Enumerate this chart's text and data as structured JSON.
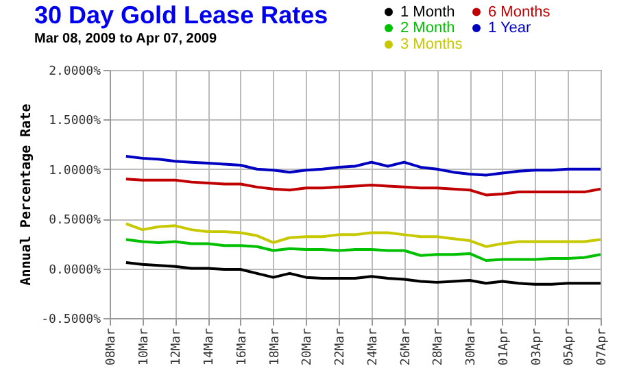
{
  "chart_data": {
    "type": "line",
    "title": "30 Day Gold Lease Rates",
    "subtitle": "Mar 08, 2009 to Apr 07, 2009",
    "ylabel": "Annual Percentage Rate",
    "x": [
      "2009-03-09",
      "2009-03-10",
      "2009-03-11",
      "2009-03-12",
      "2009-03-13",
      "2009-03-14",
      "2009-03-15",
      "2009-03-16",
      "2009-03-17",
      "2009-03-18",
      "2009-03-19",
      "2009-03-20",
      "2009-03-21",
      "2009-03-22",
      "2009-03-23",
      "2009-03-24",
      "2009-03-25",
      "2009-03-26",
      "2009-03-27",
      "2009-03-28",
      "2009-03-29",
      "2009-03-30",
      "2009-03-31",
      "2009-04-01",
      "2009-04-02",
      "2009-04-03",
      "2009-04-04",
      "2009-04-05",
      "2009-04-06",
      "2009-04-07"
    ],
    "series": [
      {
        "name": "1 Month",
        "color": "#000000",
        "values": [
          0.06,
          0.04,
          0.03,
          0.02,
          0.0,
          0.0,
          -0.01,
          -0.01,
          -0.05,
          -0.09,
          -0.05,
          -0.09,
          -0.1,
          -0.1,
          -0.1,
          -0.08,
          -0.1,
          -0.11,
          -0.13,
          -0.14,
          -0.13,
          -0.12,
          -0.15,
          -0.13,
          -0.15,
          -0.16,
          -0.16,
          -0.15,
          -0.15,
          -0.15
        ]
      },
      {
        "name": "2 Month",
        "color": "#00c000",
        "values": [
          0.29,
          0.27,
          0.26,
          0.27,
          0.25,
          0.25,
          0.23,
          0.23,
          0.22,
          0.18,
          0.2,
          0.19,
          0.19,
          0.18,
          0.19,
          0.19,
          0.18,
          0.18,
          0.13,
          0.14,
          0.14,
          0.15,
          0.08,
          0.09,
          0.09,
          0.09,
          0.1,
          0.1,
          0.11,
          0.14
        ]
      },
      {
        "name": "3 Months",
        "color": "#c8c800",
        "values": [
          0.45,
          0.39,
          0.42,
          0.43,
          0.39,
          0.37,
          0.37,
          0.36,
          0.33,
          0.26,
          0.31,
          0.32,
          0.32,
          0.34,
          0.34,
          0.36,
          0.36,
          0.34,
          0.32,
          0.32,
          0.3,
          0.28,
          0.22,
          0.25,
          0.27,
          0.27,
          0.27,
          0.27,
          0.27,
          0.29
        ]
      },
      {
        "name": "6 Months",
        "color": "#c00000",
        "values": [
          0.9,
          0.89,
          0.89,
          0.89,
          0.87,
          0.86,
          0.85,
          0.85,
          0.82,
          0.8,
          0.79,
          0.81,
          0.81,
          0.82,
          0.83,
          0.84,
          0.83,
          0.82,
          0.81,
          0.81,
          0.8,
          0.79,
          0.74,
          0.75,
          0.77,
          0.77,
          0.77,
          0.77,
          0.77,
          0.8
        ]
      },
      {
        "name": "1 Year",
        "color": "#0000c0",
        "values": [
          1.13,
          1.11,
          1.1,
          1.08,
          1.07,
          1.06,
          1.05,
          1.04,
          1.0,
          0.99,
          0.97,
          0.99,
          1.0,
          1.02,
          1.03,
          1.07,
          1.03,
          1.07,
          1.02,
          1.0,
          0.97,
          0.95,
          0.94,
          0.96,
          0.98,
          0.99,
          0.99,
          1.0,
          1.0,
          1.0
        ]
      }
    ],
    "xlim": [
      "2009-03-08",
      "2009-04-07"
    ],
    "xticks": [
      {
        "value": "2009-03-08",
        "label": "08Mar"
      },
      {
        "value": "2009-03-10",
        "label": "10Mar"
      },
      {
        "value": "2009-03-12",
        "label": "12Mar"
      },
      {
        "value": "2009-03-14",
        "label": "14Mar"
      },
      {
        "value": "2009-03-16",
        "label": "16Mar"
      },
      {
        "value": "2009-03-18",
        "label": "18Mar"
      },
      {
        "value": "2009-03-20",
        "label": "20Mar"
      },
      {
        "value": "2009-03-22",
        "label": "22Mar"
      },
      {
        "value": "2009-03-24",
        "label": "24Mar"
      },
      {
        "value": "2009-03-26",
        "label": "26Mar"
      },
      {
        "value": "2009-03-28",
        "label": "28Mar"
      },
      {
        "value": "2009-03-30",
        "label": "30Mar"
      },
      {
        "value": "2009-04-01",
        "label": "01Apr"
      },
      {
        "value": "2009-04-03",
        "label": "03Apr"
      },
      {
        "value": "2009-04-05",
        "label": "05Apr"
      },
      {
        "value": "2009-04-07",
        "label": "07Apr"
      }
    ],
    "ylim": [
      -0.5,
      2.0
    ],
    "yticks": [
      {
        "value": -0.5,
        "label": "-0.5000%"
      },
      {
        "value": 0,
        "label": "0.0000%"
      },
      {
        "value": 0.5,
        "label": "0.5000%"
      },
      {
        "value": 1.0,
        "label": "1.0000%"
      },
      {
        "value": 1.5,
        "label": "1.5000%"
      },
      {
        "value": 2.0,
        "label": "2.0000%"
      }
    ],
    "grid": true,
    "legend": "top right",
    "marker": "none",
    "line_style": "solid"
  }
}
